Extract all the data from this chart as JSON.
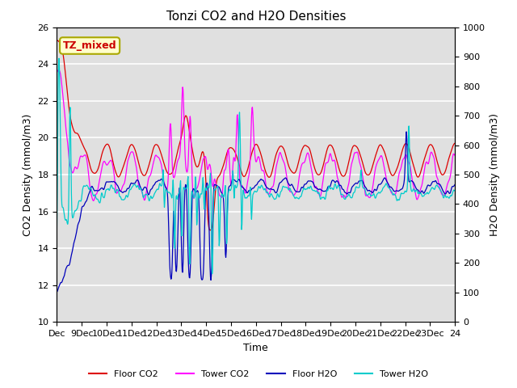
{
  "title": "Tonzi CO2 and H2O Densities",
  "xlabel": "Time",
  "ylabel_left": "CO2 Density (mmol/m3)",
  "ylabel_right": "H2O Density (mmol/m3)",
  "ylim_left": [
    10,
    26
  ],
  "ylim_right": [
    0,
    1000
  ],
  "annotation_text": "TZ_mixed",
  "annotation_bg": "#ffffcc",
  "annotation_border": "#aaa800",
  "annotation_color": "#cc0000",
  "colors": {
    "floor_co2": "#dd0000",
    "tower_co2": "#ff00ff",
    "floor_h2o": "#0000bb",
    "tower_h2o": "#00cccc"
  },
  "legend_labels": [
    "Floor CO2",
    "Tower CO2",
    "Floor H2O",
    "Tower H2O"
  ],
  "xtick_labels": [
    "Dec",
    "9Dec",
    "10Dec",
    "11Dec",
    "12Dec",
    "13Dec",
    "14Dec",
    "15Dec",
    "16Dec",
    "17Dec",
    "18Dec",
    "19Dec",
    "20Dec",
    "21Dec",
    "22Dec",
    "23Dec",
    "24"
  ],
  "n_points": 960,
  "bg_color": "#e0e0e0",
  "grid_color": "#ffffff"
}
